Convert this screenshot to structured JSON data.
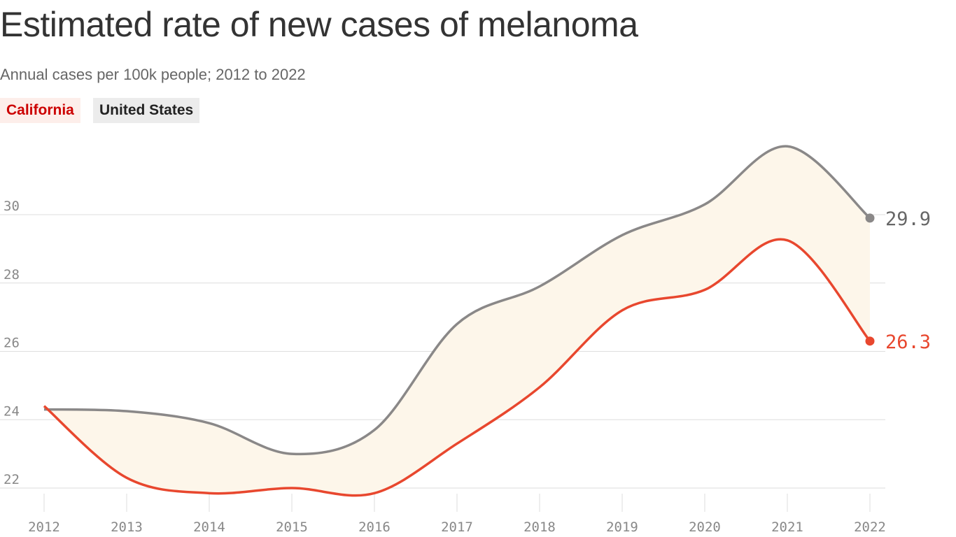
{
  "chart_data": {
    "type": "line",
    "title": "Estimated rate of new cases of melanoma",
    "subtitle": "Annual cases per 100k people; 2012 to 2022",
    "x": [
      2012,
      2013,
      2014,
      2015,
      2016,
      2017,
      2018,
      2019,
      2020,
      2021,
      2022
    ],
    "x_tick_labels": [
      "2012",
      "2013",
      "2014",
      "2015",
      "2016",
      "2017",
      "2018",
      "2019",
      "2020",
      "2021",
      "2022"
    ],
    "y_ticks": [
      22,
      24,
      26,
      28,
      30
    ],
    "ylim": [
      21.8,
      32.3
    ],
    "grid": true,
    "legend_placement": "top-left",
    "series": [
      {
        "name": "California",
        "color": "#e8472e",
        "values": [
          24.4,
          22.3,
          21.85,
          22.0,
          21.85,
          23.3,
          24.95,
          27.2,
          27.8,
          29.25,
          26.3
        ],
        "end_label": "26.3"
      },
      {
        "name": "United States",
        "color": "#8a8888",
        "values": [
          24.3,
          24.25,
          23.9,
          23.0,
          23.7,
          26.8,
          27.9,
          29.4,
          30.3,
          32.0,
          29.9
        ],
        "end_label": "29.9"
      }
    ],
    "fill_between_color": "#fdf6ea"
  },
  "legend": {
    "california": "California",
    "united_states": "United States"
  }
}
